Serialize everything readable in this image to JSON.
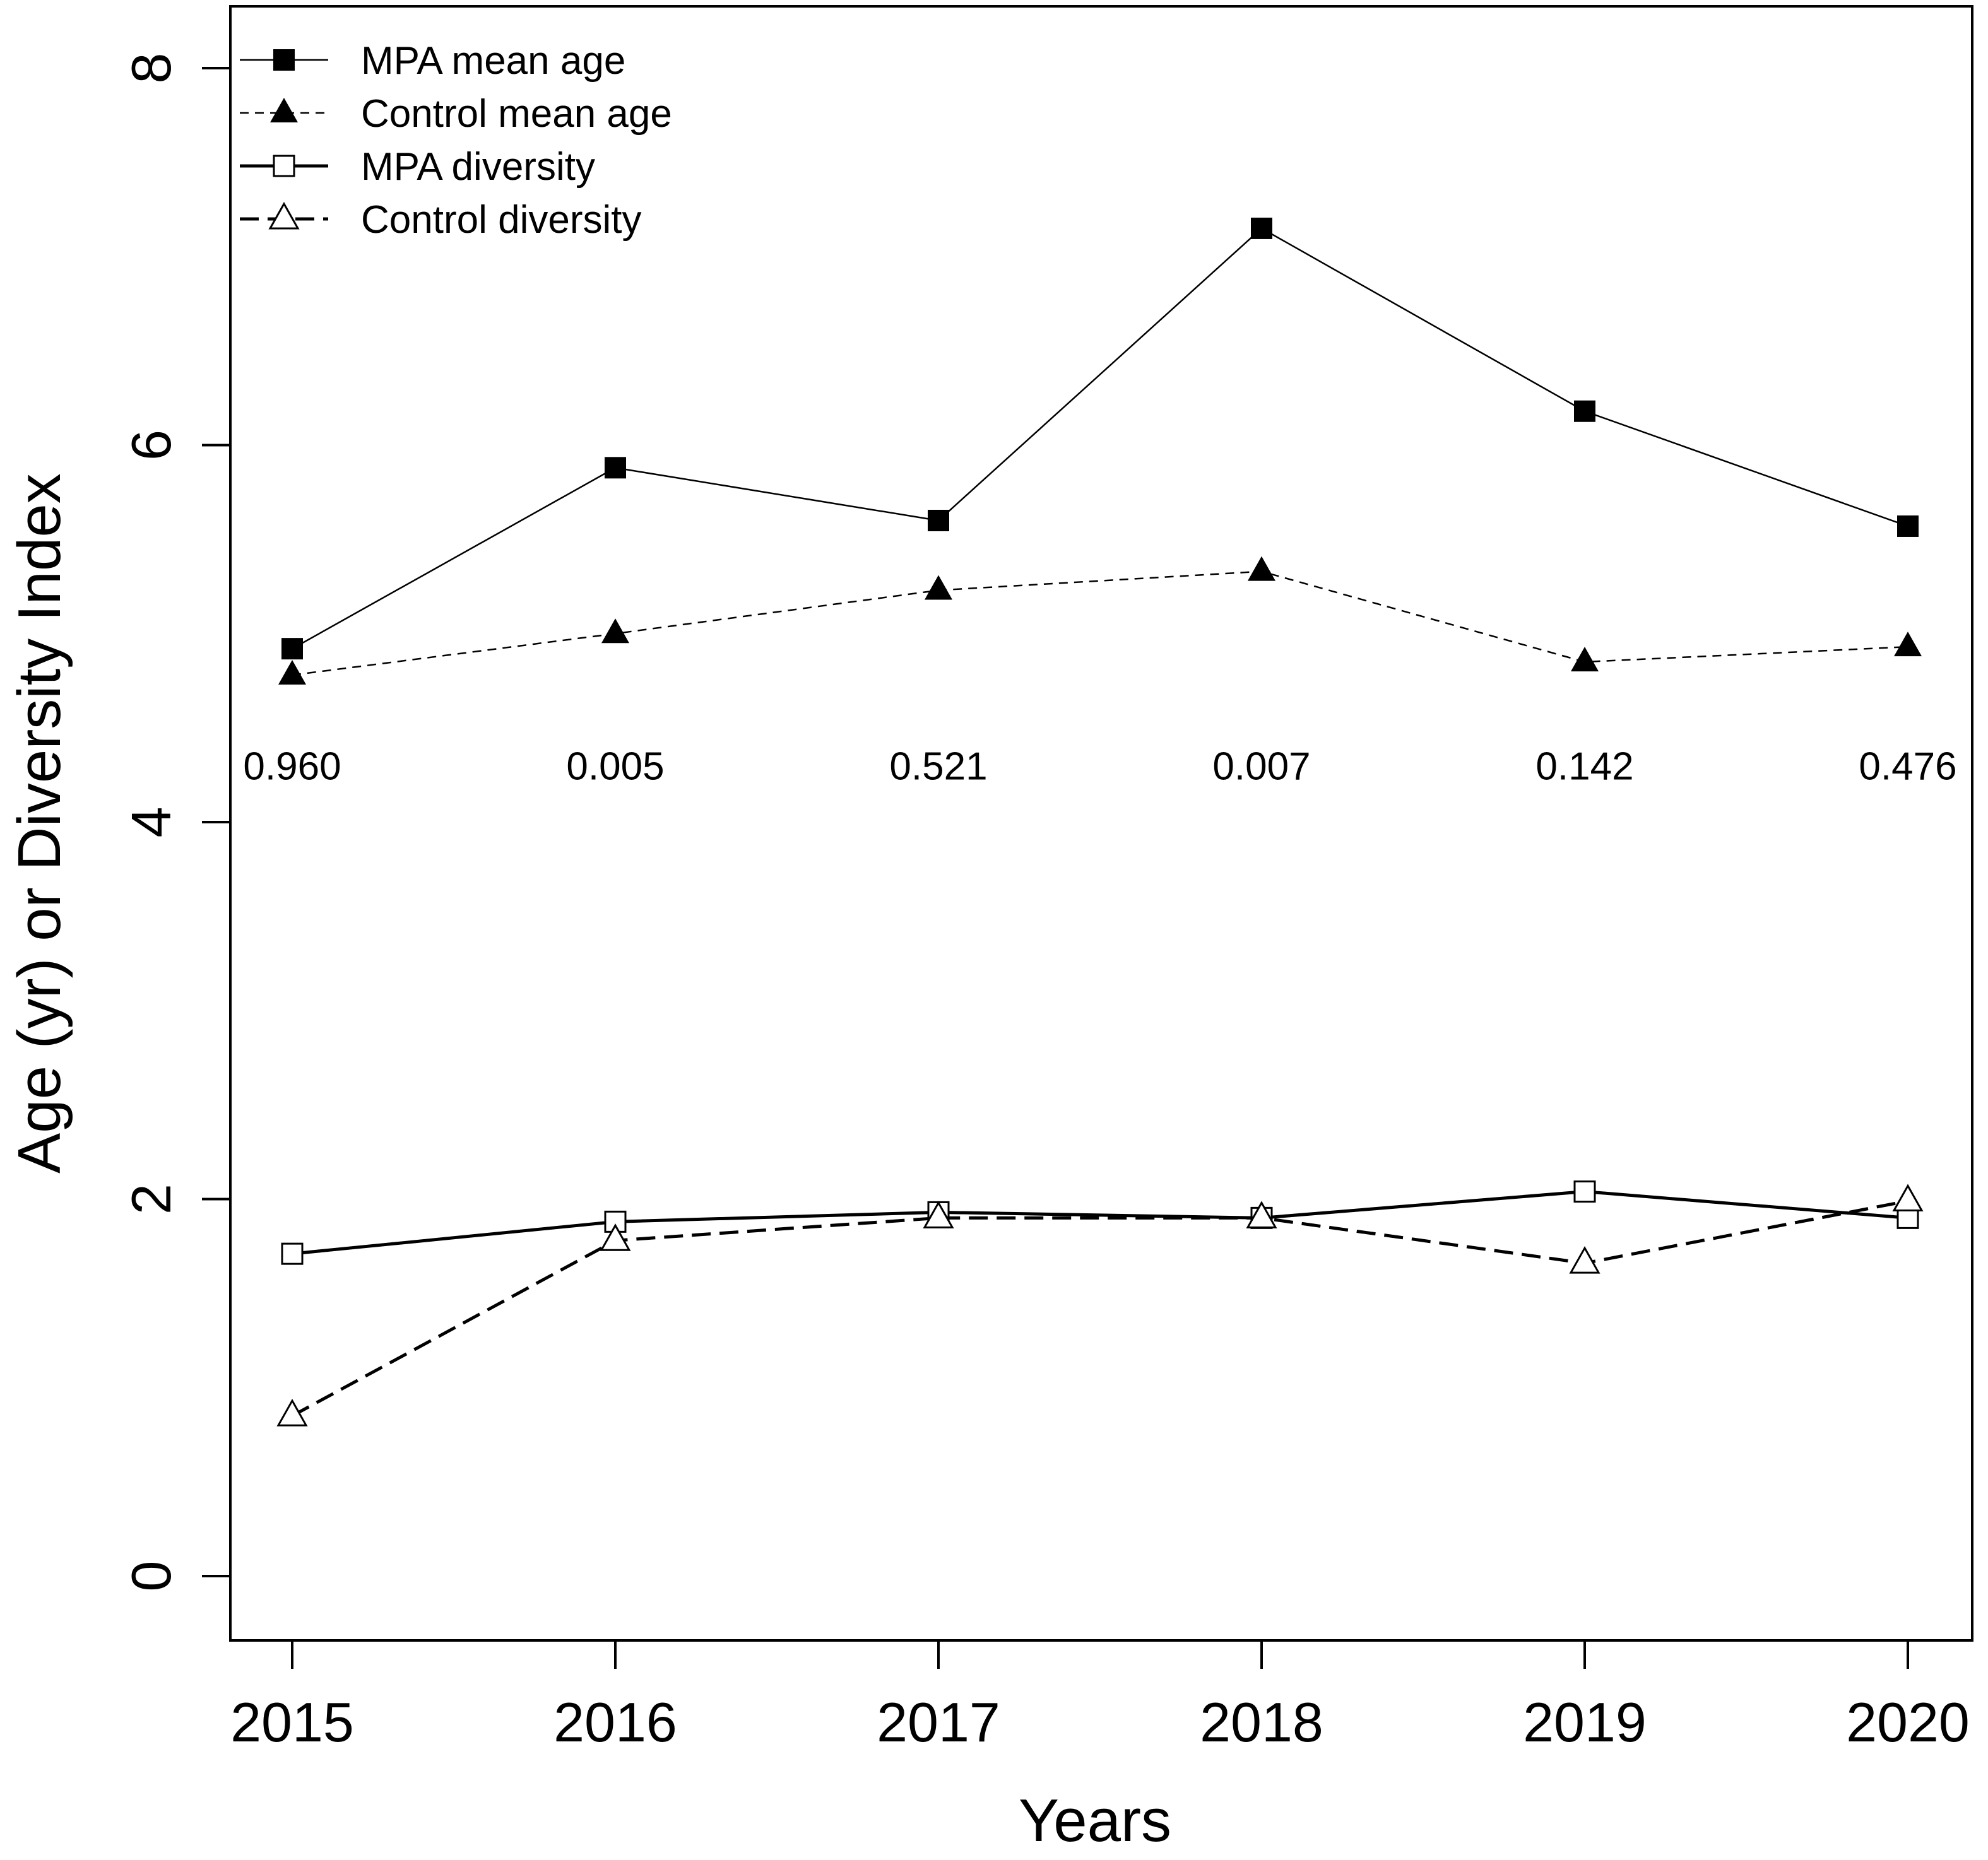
{
  "chart_data": {
    "type": "line",
    "title": "",
    "xlabel": "Years",
    "ylabel": "Age (yr) or Diversity Index",
    "x": [
      2015,
      2016,
      2017,
      2018,
      2019,
      2020
    ],
    "x_tick_labels": [
      "2015",
      "2016",
      "2017",
      "2018",
      "2019",
      "2020"
    ],
    "ylim": [
      0,
      8
    ],
    "y_ticks": [
      0,
      2,
      4,
      6,
      8
    ],
    "y_tick_labels": [
      "0",
      "2",
      "4",
      "6",
      "8"
    ],
    "grid": false,
    "legend_position": "top-left",
    "series": [
      {
        "name": "MPA mean age",
        "marker": "filled-square",
        "line": "solid-thin",
        "values": [
          4.92,
          5.88,
          5.6,
          7.15,
          6.18,
          5.57
        ]
      },
      {
        "name": "Control mean age",
        "marker": "filled-triangle",
        "line": "dashed-thin",
        "values": [
          4.78,
          5.0,
          5.23,
          5.33,
          4.85,
          4.93
        ]
      },
      {
        "name": "MPA diversity",
        "marker": "open-square",
        "line": "solid-thick",
        "values": [
          1.71,
          1.88,
          1.93,
          1.9,
          2.04,
          1.9
        ]
      },
      {
        "name": "Control diversity",
        "marker": "open-triangle",
        "line": "dashed-thick",
        "values": [
          0.85,
          1.78,
          1.9,
          1.9,
          1.66,
          1.99
        ]
      }
    ],
    "annotations": {
      "y_value": 4.3,
      "labels": [
        "0.960",
        "0.005",
        "0.521",
        "0.007",
        "0.142",
        "0.476"
      ]
    }
  }
}
